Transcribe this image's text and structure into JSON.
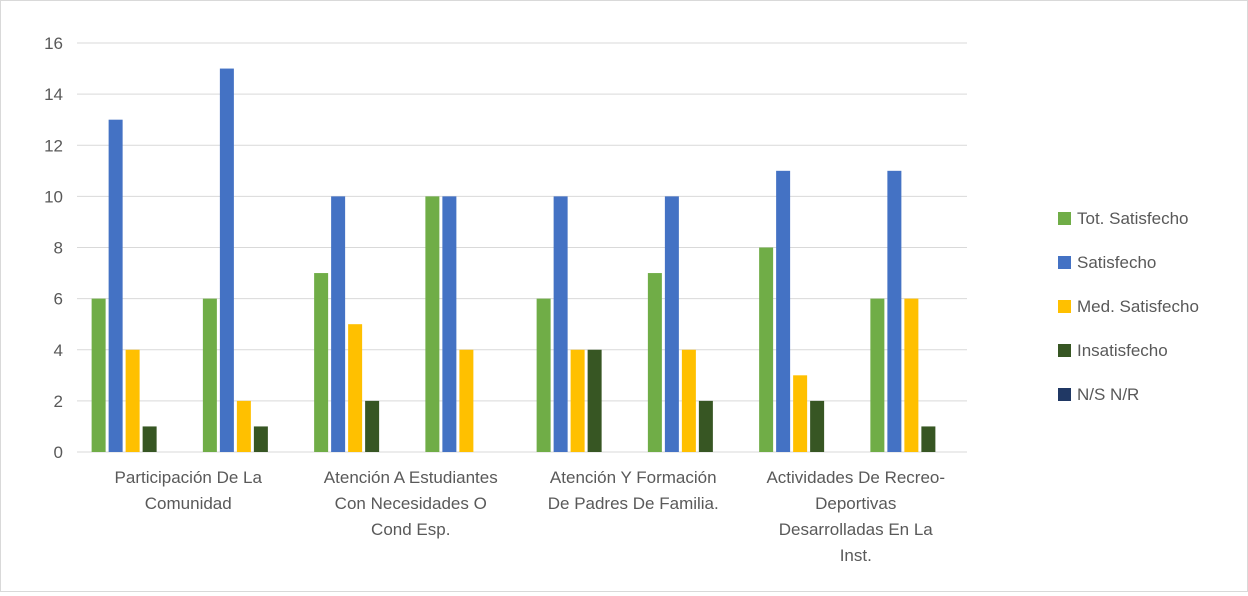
{
  "chart_data": {
    "type": "bar",
    "categories": [
      "Participación De La Comunidad",
      "",
      "Atención A Estudiantes Con Necesidades O Cond Esp.",
      "",
      "Atención Y Formación De Padres De Familia.",
      "",
      "Actividades De Recreo-Deportivas Desarrolladas En La Inst.",
      ""
    ],
    "category_label_lines": [
      [
        "Participación De La",
        "Comunidad"
      ],
      [],
      [
        "Atención A Estudiantes",
        "Con Necesidades O",
        "Cond Esp."
      ],
      [],
      [
        "Atención Y Formación",
        "De Padres De Familia."
      ],
      [],
      [
        "Actividades De Recreo-",
        "Deportivas",
        "Desarrolladas En La",
        "Inst."
      ],
      []
    ],
    "series": [
      {
        "name": "Tot. Satisfecho",
        "color": "#70ad47",
        "values": [
          6,
          6,
          7,
          10,
          6,
          7,
          8,
          6
        ]
      },
      {
        "name": "Satisfecho",
        "color": "#4472c4",
        "values": [
          13,
          15,
          10,
          10,
          10,
          10,
          11,
          11
        ]
      },
      {
        "name": "Med. Satisfecho",
        "color": "#ffc000",
        "values": [
          4,
          2,
          5,
          4,
          4,
          4,
          3,
          6
        ]
      },
      {
        "name": "Insatisfecho",
        "color": "#375623",
        "values": [
          1,
          1,
          2,
          0,
          4,
          2,
          2,
          1
        ]
      },
      {
        "name": "N/S N/R",
        "color": "#203864",
        "values": [
          0,
          0,
          0,
          0,
          0,
          0,
          0,
          0
        ]
      }
    ],
    "y_ticks": [
      "0",
      "2",
      "4",
      "6",
      "8",
      "10",
      "12",
      "14",
      "16"
    ],
    "ylim": [
      0,
      16
    ],
    "grid": true,
    "legend_position": "right",
    "title": "",
    "xlabel": "",
    "ylabel": ""
  }
}
